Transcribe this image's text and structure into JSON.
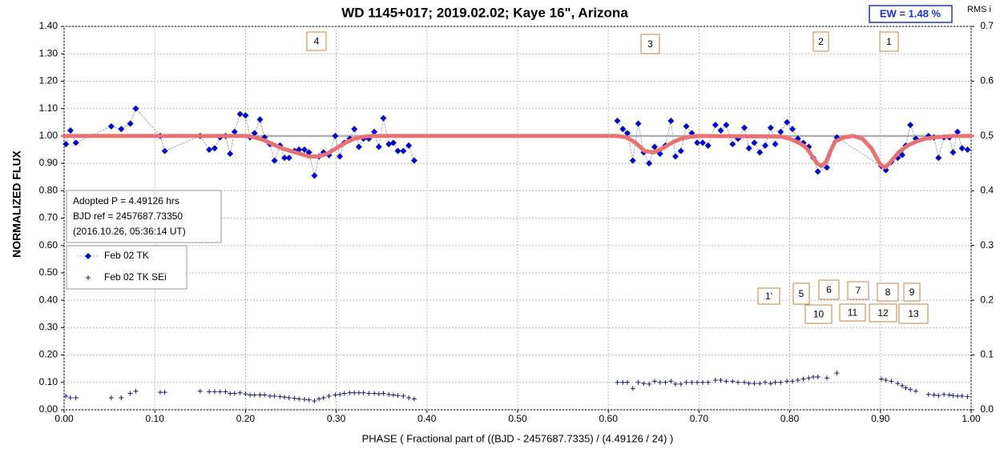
{
  "chart_data": {
    "type": "scatter",
    "title": "WD 1145+017; 2019.02.02; Kaye 16\", Arizona",
    "ew_label": "EW =  1.48 %",
    "y2_label": "RMS i",
    "x_label": "PHASE ( Fractional part of ((BJD - 2457687.7335) / (4.49126 / 24) )",
    "y_label": "NORMALIZED FLUX",
    "info_box": [
      "Adopted P = 4.49126 hrs",
      "BJD ref = 2457687.73350",
      "(2016.10.26, 05:36:14 UT)"
    ],
    "annotations": [
      "4",
      "3",
      "2",
      "1",
      "1'",
      "5",
      "6",
      "7",
      "8",
      "9",
      "10",
      "11",
      "12",
      "13"
    ],
    "xlim": [
      0,
      1
    ],
    "xticks": [
      {
        "value": 0,
        "label": "0.00"
      },
      {
        "value": 0.1,
        "label": "0.10"
      },
      {
        "value": 0.2,
        "label": "0.20"
      },
      {
        "value": 0.3,
        "label": "0.30"
      },
      {
        "value": 0.4,
        "label": "0.40"
      },
      {
        "value": 0.5,
        "label": "0.50"
      },
      {
        "value": 0.6,
        "label": "0.60"
      },
      {
        "value": 0.7,
        "label": "0.70"
      },
      {
        "value": 0.8,
        "label": "0.80"
      },
      {
        "value": 0.9,
        "label": "0.90"
      },
      {
        "value": 1,
        "label": "1.00"
      }
    ],
    "ylim": [
      0,
      1.4
    ],
    "yticks": [
      {
        "value": 0,
        "label": "0.00"
      },
      {
        "value": 0.1,
        "label": "0.10"
      },
      {
        "value": 0.2,
        "label": "0.20"
      },
      {
        "value": 0.3,
        "label": "0.30"
      },
      {
        "value": 0.4,
        "label": "0.40"
      },
      {
        "value": 0.5,
        "label": "0.50"
      },
      {
        "value": 0.6,
        "label": "0.60"
      },
      {
        "value": 0.7,
        "label": "0.70"
      },
      {
        "value": 0.8,
        "label": "0.80"
      },
      {
        "value": 0.9,
        "label": "0.90"
      },
      {
        "value": 1,
        "label": "1.00"
      },
      {
        "value": 1.1,
        "label": "1.10"
      },
      {
        "value": 1.2,
        "label": "1.20"
      },
      {
        "value": 1.3,
        "label": "1.30"
      },
      {
        "value": 1.4,
        "label": "1.40"
      }
    ],
    "y2lim": [
      0,
      0.7
    ],
    "y2ticks": [
      {
        "value": 0,
        "label": "0.0"
      },
      0.1,
      0.2,
      0.3,
      0.4,
      0.5,
      0.6,
      0.7
    ],
    "grid": true,
    "reference_line": 1,
    "reference_color": "#b0b0b0",
    "series": [
      {
        "name": "Feb 02 TK",
        "color": "#0000cc",
        "marker": "diamond",
        "line": "dotted",
        "line_color": "#8c8cc8",
        "x": [
          0.002,
          0.007,
          0.013,
          0.052,
          0.063,
          0.073,
          0.079,
          0.106,
          0.111,
          0.15,
          0.16,
          0.166,
          0.172,
          0.178,
          0.183,
          0.188,
          0.194,
          0.2,
          0.205,
          0.21,
          0.216,
          0.221,
          0.227,
          0.232,
          0.238,
          0.243,
          0.248,
          0.254,
          0.259,
          0.265,
          0.27,
          0.276,
          0.281,
          0.286,
          0.292,
          0.299,
          0.304,
          0.309,
          0.315,
          0.32,
          0.325,
          0.33,
          0.336,
          0.342,
          0.347,
          0.352,
          0.358,
          0.363,
          0.368,
          0.374,
          0.38,
          0.386,
          null,
          0.61,
          0.616,
          0.621,
          0.627,
          0.633,
          0.639,
          0.645,
          0.651,
          0.657,
          0.663,
          0.669,
          0.674,
          0.68,
          0.686,
          0.692,
          0.698,
          0.704,
          0.71,
          0.718,
          0.724,
          0.73,
          0.737,
          0.743,
          0.75,
          0.755,
          0.761,
          0.767,
          0.773,
          0.779,
          0.784,
          0.79,
          0.797,
          0.803,
          0.809,
          0.815,
          0.821,
          0.826,
          0.831,
          0.841,
          0.852,
          0.901,
          0.906,
          0.912,
          0.919,
          0.924,
          0.928,
          0.933,
          0.939,
          0.953,
          0.959,
          0.964,
          0.97,
          0.976,
          0.98,
          0.985,
          0.99,
          0.996
        ],
        "values": [
          0.97,
          1.02,
          0.975,
          1.035,
          1.025,
          1.045,
          1.1,
          1.0,
          0.945,
          1.0,
          0.95,
          0.955,
          0.995,
          1.0,
          0.935,
          1.015,
          1.08,
          1.075,
          0.995,
          1.01,
          1.06,
          0.995,
          0.97,
          0.91,
          0.965,
          0.92,
          0.92,
          0.945,
          0.95,
          0.95,
          0.94,
          0.855,
          0.925,
          0.94,
          0.93,
          1.0,
          0.925,
          0.975,
          0.99,
          1.025,
          0.96,
          0.99,
          0.99,
          1.015,
          0.96,
          1.065,
          0.97,
          0.975,
          0.945,
          0.945,
          0.965,
          0.91,
          null,
          1.055,
          1.025,
          1.01,
          0.91,
          1.045,
          0.94,
          0.9,
          0.96,
          0.935,
          0.965,
          1.055,
          0.925,
          0.945,
          1.035,
          1.01,
          0.975,
          0.975,
          0.965,
          1.04,
          1.02,
          1.04,
          0.97,
          0.99,
          1.03,
          0.955,
          0.975,
          0.94,
          0.965,
          1.03,
          0.97,
          1.015,
          1.05,
          1.025,
          0.99,
          0.975,
          0.96,
          0.92,
          0.87,
          0.885,
          0.995,
          0.89,
          0.875,
          0.905,
          0.92,
          0.93,
          0.965,
          1.04,
          0.99,
          1.0,
          0.995,
          0.92,
          0.995,
          0.995,
          0.94,
          1.015,
          0.955,
          0.95
        ]
      },
      {
        "name": "Feb 02 TK SEi",
        "color": "#1a1a6e",
        "marker": "plus",
        "line": "none",
        "axis": "y2",
        "x": [
          0.002,
          0.007,
          0.013,
          0.052,
          0.063,
          0.073,
          0.079,
          0.106,
          0.111,
          0.15,
          0.16,
          0.166,
          0.172,
          0.178,
          0.183,
          0.188,
          0.194,
          0.2,
          0.205,
          0.21,
          0.216,
          0.221,
          0.227,
          0.232,
          0.238,
          0.243,
          0.248,
          0.254,
          0.259,
          0.265,
          0.27,
          0.276,
          0.281,
          0.286,
          0.292,
          0.299,
          0.304,
          0.309,
          0.315,
          0.32,
          0.325,
          0.33,
          0.336,
          0.342,
          0.347,
          0.352,
          0.358,
          0.363,
          0.368,
          0.374,
          0.38,
          0.386,
          0.61,
          0.616,
          0.621,
          0.627,
          0.633,
          0.639,
          0.645,
          0.651,
          0.657,
          0.663,
          0.669,
          0.674,
          0.68,
          0.686,
          0.692,
          0.698,
          0.704,
          0.71,
          0.718,
          0.724,
          0.73,
          0.737,
          0.743,
          0.75,
          0.755,
          0.761,
          0.767,
          0.773,
          0.779,
          0.784,
          0.79,
          0.797,
          0.803,
          0.809,
          0.815,
          0.821,
          0.826,
          0.831,
          0.841,
          0.852,
          0.901,
          0.906,
          0.912,
          0.919,
          0.924,
          0.928,
          0.933,
          0.939,
          0.953,
          0.959,
          0.964,
          0.97,
          0.976,
          0.98,
          0.985,
          0.99,
          0.996
        ],
        "values": [
          0.025,
          0.022,
          0.022,
          0.022,
          0.022,
          0.03,
          0.034,
          0.032,
          0.032,
          0.034,
          0.033,
          0.033,
          0.033,
          0.033,
          0.03,
          0.03,
          0.031,
          0.029,
          0.027,
          0.027,
          0.027,
          0.027,
          0.025,
          0.025,
          0.024,
          0.023,
          0.022,
          0.021,
          0.02,
          0.019,
          0.018,
          0.016,
          0.02,
          0.022,
          0.025,
          0.027,
          0.028,
          0.03,
          0.031,
          0.031,
          0.031,
          0.031,
          0.03,
          0.03,
          0.029,
          0.03,
          0.028,
          0.027,
          0.026,
          0.025,
          0.022,
          0.02,
          0.05,
          0.05,
          0.05,
          0.039,
          0.05,
          0.048,
          0.047,
          0.052,
          0.05,
          0.05,
          0.052,
          0.047,
          0.047,
          0.05,
          0.05,
          0.05,
          0.05,
          0.05,
          0.054,
          0.054,
          0.052,
          0.052,
          0.05,
          0.05,
          0.048,
          0.048,
          0.048,
          0.05,
          0.048,
          0.05,
          0.05,
          0.052,
          0.052,
          0.054,
          0.056,
          0.058,
          0.06,
          0.06,
          0.058,
          0.067,
          0.056,
          0.054,
          0.052,
          0.048,
          0.044,
          0.04,
          0.037,
          0.034,
          0.028,
          0.027,
          0.026,
          0.028,
          0.027,
          0.026,
          0.025,
          0.025,
          0.024
        ]
      },
      {
        "color": "#e87272",
        "marker": "none",
        "line": "thick",
        "x": [
          0,
          0.2,
          0.21,
          0.22,
          0.23,
          0.24,
          0.25,
          0.26,
          0.27,
          0.28,
          0.29,
          0.3,
          0.31,
          0.32,
          0.33,
          0.34,
          0.61,
          0.62,
          0.63,
          0.64,
          0.65,
          0.66,
          0.67,
          0.68,
          0.69,
          0.7,
          0.79,
          0.8,
          0.81,
          0.815,
          0.82,
          0.825,
          0.83,
          0.835,
          0.84,
          0.845,
          0.85,
          0.86,
          0.87,
          0.88,
          0.89,
          0.895,
          0.9,
          0.905,
          0.91,
          0.92,
          0.93,
          0.94,
          0.95,
          0.96,
          0.98,
          1
        ],
        "values": [
          1,
          1,
          0.995,
          0.985,
          0.97,
          0.955,
          0.945,
          0.935,
          0.925,
          0.925,
          0.935,
          0.955,
          0.975,
          0.99,
          0.997,
          1,
          1,
          0.995,
          0.975,
          0.945,
          0.94,
          0.955,
          0.975,
          0.99,
          0.997,
          1,
          0.998,
          0.99,
          0.975,
          0.965,
          0.95,
          0.925,
          0.9,
          0.89,
          0.905,
          0.945,
          0.98,
          0.995,
          1,
          0.99,
          0.955,
          0.925,
          0.895,
          0.885,
          0.9,
          0.94,
          0.965,
          0.98,
          0.99,
          0.995,
          1,
          1
        ]
      }
    ]
  }
}
